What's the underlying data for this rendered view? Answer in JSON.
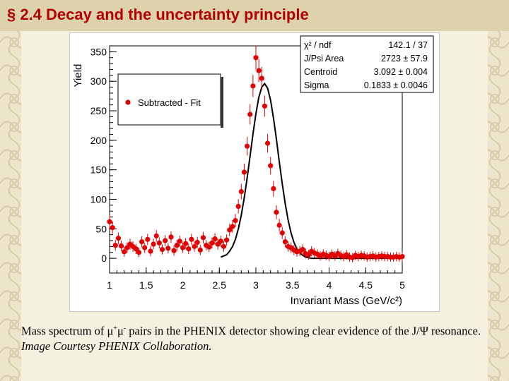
{
  "slide": {
    "title": "§ 2.4 Decay and the uncertainty principle",
    "caption": {
      "part1": "Mass spectrum of μ",
      "sup1": "+",
      "part2": "μ",
      "sup2": "-",
      "part3": " pairs in the PHENIX detector showing clear evidence of the J/Ψ resonance.",
      "credit": "Image Courtesy PHENIX Collaboration."
    }
  },
  "colors": {
    "title": "#b30000",
    "data_points": "#e00000",
    "fit_curve": "#000000"
  },
  "chart_data": {
    "type": "scatter",
    "xlabel": "Invariant Mass (GeV/c²)",
    "ylabel": "Yield",
    "xlim": [
      1,
      5
    ],
    "ylim": [
      -25,
      360
    ],
    "xticks": [
      {
        "value": 1,
        "label": "1"
      },
      {
        "value": 1.5,
        "label": "1.5"
      },
      {
        "value": 2,
        "label": "2"
      },
      {
        "value": 2.5,
        "label": "2.5"
      },
      {
        "value": 3,
        "label": "3"
      },
      {
        "value": 3.5,
        "label": "3.5"
      },
      {
        "value": 4,
        "label": "4"
      },
      {
        "value": 4.5,
        "label": "4.5"
      },
      {
        "value": 5,
        "label": "5"
      }
    ],
    "yticks": [
      {
        "value": 0,
        "label": "0"
      },
      {
        "value": 50,
        "label": "50"
      },
      {
        "value": 100,
        "label": "100"
      },
      {
        "value": 150,
        "label": "150"
      },
      {
        "value": 200,
        "label": "200"
      },
      {
        "value": 250,
        "label": "250"
      },
      {
        "value": 300,
        "label": "300"
      },
      {
        "value": 350,
        "label": "350"
      }
    ],
    "legend": {
      "position": "top-left",
      "entries": [
        "Subtracted - Fit"
      ]
    },
    "stats": [
      {
        "label": "χ² / ndf",
        "value": "142.1 / 37"
      },
      {
        "label": "J/Psi Area",
        "value": "2723 ± 57.9"
      },
      {
        "label": "Centroid",
        "value": "3.092 ± 0.004"
      },
      {
        "label": "Sigma",
        "value": "0.1833 ± 0.0046"
      }
    ],
    "series": [
      {
        "name": "Subtracted - Fit",
        "style": "points",
        "x": [
          1.0,
          1.04,
          1.08,
          1.12,
          1.16,
          1.2,
          1.24,
          1.28,
          1.32,
          1.36,
          1.4,
          1.44,
          1.48,
          1.52,
          1.56,
          1.6,
          1.64,
          1.68,
          1.72,
          1.76,
          1.8,
          1.84,
          1.88,
          1.92,
          1.96,
          2.0,
          2.04,
          2.08,
          2.12,
          2.16,
          2.2,
          2.24,
          2.28,
          2.32,
          2.36,
          2.4,
          2.44,
          2.48,
          2.52,
          2.56,
          2.6,
          2.64,
          2.68,
          2.72,
          2.76,
          2.8,
          2.84,
          2.88,
          2.92,
          2.96,
          3.0,
          3.04,
          3.08,
          3.12,
          3.16,
          3.2,
          3.24,
          3.28,
          3.32,
          3.36,
          3.4,
          3.44,
          3.48,
          3.52,
          3.56,
          3.6,
          3.64,
          3.68,
          3.72,
          3.76,
          3.8,
          3.84,
          3.88,
          3.92,
          3.96,
          4.0,
          4.04,
          4.08,
          4.12,
          4.16,
          4.2,
          4.24,
          4.28,
          4.32,
          4.36,
          4.4,
          4.44,
          4.48,
          4.52,
          4.56,
          4.6,
          4.64,
          4.68,
          4.72,
          4.76,
          4.8,
          4.84,
          4.88,
          4.92,
          4.96,
          5.0
        ],
        "y": [
          62,
          52,
          22,
          34,
          21,
          11,
          18,
          24,
          20,
          16,
          10,
          28,
          18,
          32,
          12,
          24,
          38,
          26,
          15,
          30,
          17,
          36,
          13,
          22,
          29,
          18,
          25,
          16,
          32,
          20,
          27,
          14,
          35,
          22,
          19,
          26,
          33,
          24,
          29,
          20,
          31,
          48,
          54,
          64,
          88,
          113,
          146,
          190,
          244,
          292,
          340,
          318,
          305,
          258,
          195,
          157,
          118,
          78,
          56,
          43,
          28,
          20,
          18,
          14,
          11,
          12,
          15,
          8,
          6,
          12,
          9,
          7,
          4,
          7,
          5,
          3,
          7,
          4,
          8,
          5,
          3,
          6,
          2,
          1,
          5,
          3,
          5,
          4,
          2,
          3,
          4,
          2,
          3,
          4,
          3,
          3,
          2,
          2,
          3,
          2,
          3
        ]
      },
      {
        "name": "fit",
        "style": "line",
        "x": [
          2.52,
          2.56,
          2.6,
          2.64,
          2.68,
          2.72,
          2.76,
          2.8,
          2.84,
          2.88,
          2.92,
          2.96,
          3.0,
          3.04,
          3.08,
          3.12,
          3.16,
          3.2,
          3.24,
          3.28,
          3.32,
          3.36,
          3.4,
          3.44,
          3.48,
          3.52,
          3.56,
          3.6,
          3.64,
          3.68,
          3.72,
          3.76,
          3.8,
          3.84,
          3.88,
          3.92,
          3.96,
          4.0,
          4.1,
          4.2,
          4.3,
          4.4,
          4.5,
          4.6,
          4.7,
          4.8,
          4.9,
          5.0
        ],
        "y": [
          2,
          4,
          6,
          12,
          20,
          32,
          50,
          73,
          102,
          136,
          173,
          211,
          245,
          273,
          290,
          296,
          288,
          268,
          238,
          202,
          163,
          126,
          93,
          65,
          43,
          27,
          16,
          9,
          5,
          2,
          1,
          0,
          0,
          0,
          0,
          0,
          0,
          0,
          0,
          0,
          0,
          0,
          0,
          0,
          0,
          0,
          0,
          0
        ]
      }
    ]
  }
}
